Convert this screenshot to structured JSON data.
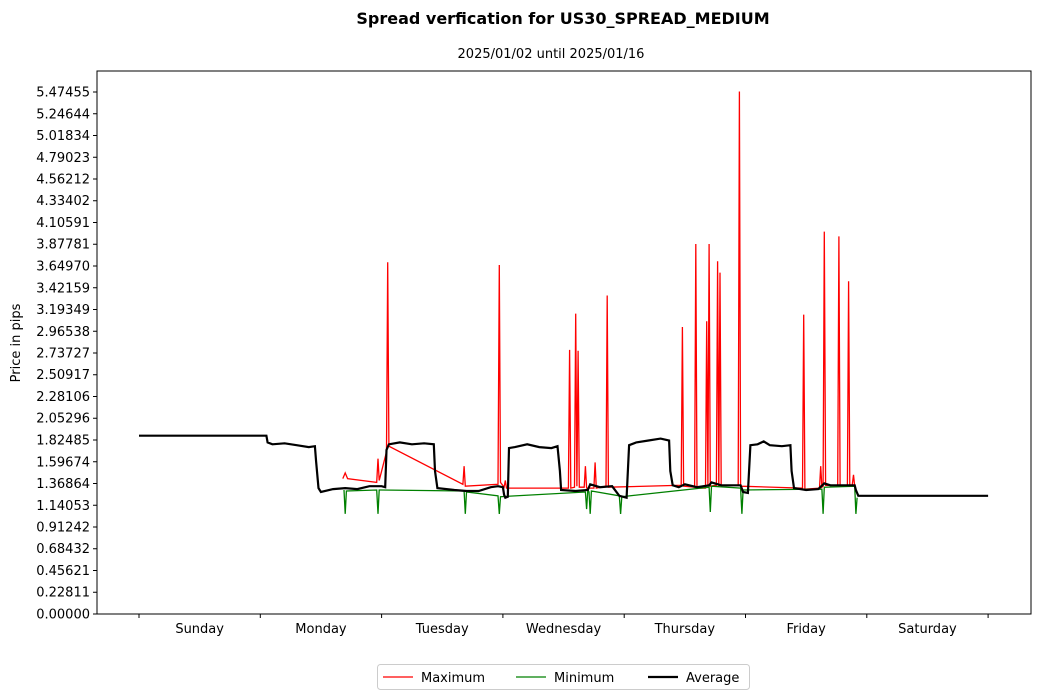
{
  "chart_data": {
    "type": "line",
    "title": "Spread verfication for US30_SPREAD_MEDIUM",
    "subtitle": "2025/01/02 until 2025/01/16",
    "ylabel": "Price in pips",
    "xlabel": "",
    "ylim": [
      0,
      5.7
    ],
    "yticks": [
      "0.00000",
      "0.22811",
      "0.45621",
      "0.68432",
      "0.91242",
      "1.14053",
      "1.36864",
      "1.59674",
      "1.82485",
      "2.05296",
      "2.28106",
      "2.50917",
      "2.73727",
      "2.96538",
      "3.19349",
      "3.42159",
      "3.64970",
      "3.87781",
      "4.10591",
      "4.33402",
      "4.56212",
      "4.79023",
      "5.01834",
      "5.24644",
      "5.47455"
    ],
    "xlim": [
      -0.35,
      7.35
    ],
    "categories": [
      "Sunday",
      "Monday",
      "Tuesday",
      "Wednesday",
      "Thursday",
      "Friday",
      "Saturday"
    ],
    "grid": false,
    "legend_position": "bottom-center",
    "series": [
      {
        "name": "Maximum",
        "color": "#ff0000",
        "points": [
          [
            1.68,
            1.42
          ],
          [
            1.7,
            1.48
          ],
          [
            1.72,
            1.42
          ],
          [
            1.96,
            1.38
          ],
          [
            1.97,
            1.63
          ],
          [
            1.98,
            1.4
          ],
          [
            2.04,
            1.7
          ],
          [
            2.05,
            3.69
          ],
          [
            2.06,
            1.76
          ],
          [
            2.67,
            1.36
          ],
          [
            2.68,
            1.55
          ],
          [
            2.69,
            1.34
          ],
          [
            2.96,
            1.36
          ],
          [
            2.97,
            3.66
          ],
          [
            2.98,
            1.38
          ],
          [
            3.01,
            1.33
          ],
          [
            3.02,
            1.4
          ],
          [
            3.03,
            1.32
          ],
          [
            3.54,
            1.32
          ],
          [
            3.55,
            2.77
          ],
          [
            3.56,
            1.32
          ],
          [
            3.59,
            1.33
          ],
          [
            3.6,
            3.15
          ],
          [
            3.61,
            1.34
          ],
          [
            3.62,
            2.76
          ],
          [
            3.63,
            1.33
          ],
          [
            3.67,
            1.33
          ],
          [
            3.68,
            1.55
          ],
          [
            3.69,
            1.32
          ],
          [
            3.75,
            1.32
          ],
          [
            3.76,
            1.59
          ],
          [
            3.77,
            1.32
          ],
          [
            3.85,
            1.34
          ],
          [
            3.86,
            3.34
          ],
          [
            3.87,
            1.33
          ],
          [
            4.47,
            1.35
          ],
          [
            4.48,
            3.01
          ],
          [
            4.49,
            1.34
          ],
          [
            4.58,
            1.33
          ],
          [
            4.59,
            3.88
          ],
          [
            4.6,
            1.32
          ],
          [
            4.67,
            1.32
          ],
          [
            4.68,
            3.07
          ],
          [
            4.69,
            1.35
          ],
          [
            4.7,
            3.88
          ],
          [
            4.71,
            1.34
          ],
          [
            4.76,
            1.35
          ],
          [
            4.77,
            3.7
          ],
          [
            4.78,
            1.34
          ],
          [
            4.79,
            3.58
          ],
          [
            4.8,
            1.35
          ],
          [
            4.94,
            1.35
          ],
          [
            4.95,
            5.48
          ],
          [
            4.96,
            1.34
          ],
          [
            5.47,
            1.32
          ],
          [
            5.48,
            3.14
          ],
          [
            5.49,
            1.31
          ],
          [
            5.61,
            1.32
          ],
          [
            5.62,
            1.55
          ],
          [
            5.63,
            1.33
          ],
          [
            5.64,
            1.34
          ],
          [
            5.65,
            4.01
          ],
          [
            5.66,
            1.35
          ],
          [
            5.76,
            1.35
          ],
          [
            5.77,
            3.96
          ],
          [
            5.78,
            1.34
          ],
          [
            5.84,
            1.34
          ],
          [
            5.85,
            3.49
          ],
          [
            5.86,
            1.34
          ],
          [
            5.88,
            1.35
          ],
          [
            5.89,
            1.46
          ],
          [
            5.9,
            1.34
          ]
        ]
      },
      {
        "name": "Minimum",
        "color": "#008000",
        "points": [
          [
            1.69,
            1.3
          ],
          [
            1.7,
            1.05
          ],
          [
            1.71,
            1.29
          ],
          [
            1.96,
            1.3
          ],
          [
            1.97,
            1.05
          ],
          [
            1.98,
            1.3
          ],
          [
            2.68,
            1.29
          ],
          [
            2.69,
            1.05
          ],
          [
            2.7,
            1.28
          ],
          [
            2.96,
            1.24
          ],
          [
            2.97,
            1.05
          ],
          [
            2.98,
            1.23
          ],
          [
            3.68,
            1.28
          ],
          [
            3.69,
            1.1
          ],
          [
            3.7,
            1.3
          ],
          [
            3.71,
            1.28
          ],
          [
            3.72,
            1.05
          ],
          [
            3.73,
            1.29
          ],
          [
            3.96,
            1.24
          ],
          [
            3.97,
            1.05
          ],
          [
            3.98,
            1.23
          ],
          [
            4.7,
            1.33
          ],
          [
            4.71,
            1.07
          ],
          [
            4.72,
            1.34
          ],
          [
            4.96,
            1.32
          ],
          [
            4.97,
            1.05
          ],
          [
            4.98,
            1.3
          ],
          [
            5.63,
            1.31
          ],
          [
            5.64,
            1.05
          ],
          [
            5.65,
            1.33
          ],
          [
            5.9,
            1.34
          ],
          [
            5.91,
            1.05
          ],
          [
            5.92,
            1.22
          ]
        ]
      },
      {
        "name": "Average",
        "color": "#000000",
        "points": [
          [
            0,
            1.87
          ],
          [
            0.5,
            1.87
          ],
          [
            1.05,
            1.87
          ],
          [
            1.06,
            1.8
          ],
          [
            1.1,
            1.78
          ],
          [
            1.2,
            1.79
          ],
          [
            1.3,
            1.77
          ],
          [
            1.4,
            1.75
          ],
          [
            1.45,
            1.76
          ],
          [
            1.46,
            1.6
          ],
          [
            1.48,
            1.32
          ],
          [
            1.5,
            1.28
          ],
          [
            1.6,
            1.31
          ],
          [
            1.7,
            1.32
          ],
          [
            1.8,
            1.31
          ],
          [
            1.9,
            1.34
          ],
          [
            2.0,
            1.34
          ],
          [
            2.03,
            1.33
          ],
          [
            2.04,
            1.72
          ],
          [
            2.06,
            1.78
          ],
          [
            2.15,
            1.8
          ],
          [
            2.25,
            1.78
          ],
          [
            2.35,
            1.79
          ],
          [
            2.43,
            1.78
          ],
          [
            2.44,
            1.5
          ],
          [
            2.46,
            1.32
          ],
          [
            2.6,
            1.3
          ],
          [
            2.7,
            1.29
          ],
          [
            2.8,
            1.29
          ],
          [
            2.9,
            1.33
          ],
          [
            2.96,
            1.34
          ],
          [
            3.0,
            1.33
          ],
          [
            3.01,
            1.25
          ],
          [
            3.02,
            1.22
          ],
          [
            3.04,
            1.23
          ],
          [
            3.05,
            1.74
          ],
          [
            3.1,
            1.75
          ],
          [
            3.2,
            1.78
          ],
          [
            3.3,
            1.75
          ],
          [
            3.4,
            1.74
          ],
          [
            3.45,
            1.76
          ],
          [
            3.47,
            1.5
          ],
          [
            3.48,
            1.3
          ],
          [
            3.6,
            1.29
          ],
          [
            3.7,
            1.3
          ],
          [
            3.72,
            1.36
          ],
          [
            3.8,
            1.33
          ],
          [
            3.9,
            1.34
          ],
          [
            3.96,
            1.24
          ],
          [
            4.02,
            1.22
          ],
          [
            4.04,
            1.77
          ],
          [
            4.1,
            1.8
          ],
          [
            4.2,
            1.82
          ],
          [
            4.3,
            1.84
          ],
          [
            4.37,
            1.82
          ],
          [
            4.38,
            1.5
          ],
          [
            4.4,
            1.35
          ],
          [
            4.45,
            1.33
          ],
          [
            4.5,
            1.36
          ],
          [
            4.6,
            1.33
          ],
          [
            4.7,
            1.35
          ],
          [
            4.72,
            1.38
          ],
          [
            4.8,
            1.35
          ],
          [
            4.9,
            1.35
          ],
          [
            4.96,
            1.35
          ],
          [
            4.98,
            1.28
          ],
          [
            5.02,
            1.27
          ],
          [
            5.04,
            1.77
          ],
          [
            5.1,
            1.78
          ],
          [
            5.15,
            1.81
          ],
          [
            5.2,
            1.77
          ],
          [
            5.3,
            1.76
          ],
          [
            5.37,
            1.77
          ],
          [
            5.38,
            1.5
          ],
          [
            5.4,
            1.32
          ],
          [
            5.5,
            1.3
          ],
          [
            5.6,
            1.31
          ],
          [
            5.65,
            1.37
          ],
          [
            5.7,
            1.35
          ],
          [
            5.8,
            1.35
          ],
          [
            5.9,
            1.35
          ],
          [
            5.91,
            1.3
          ],
          [
            5.93,
            1.24
          ],
          [
            6.0,
            1.24
          ],
          [
            6.5,
            1.24
          ],
          [
            7.0,
            1.24
          ]
        ]
      }
    ]
  }
}
